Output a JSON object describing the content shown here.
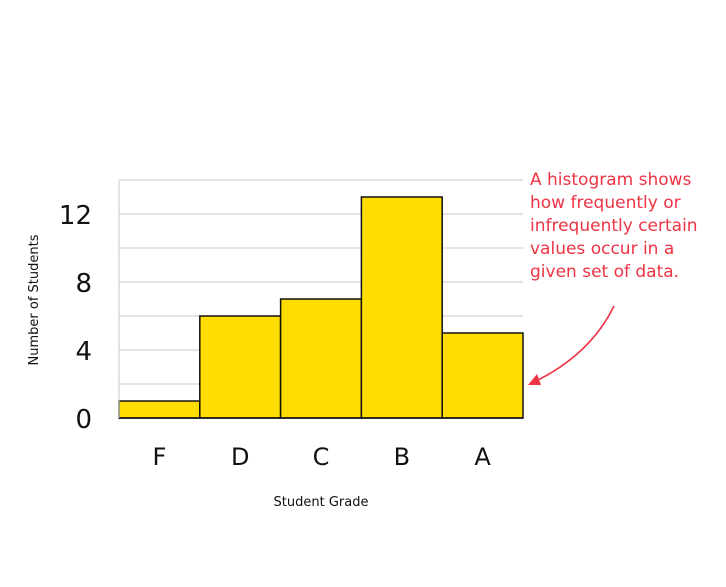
{
  "chart_data": {
    "type": "bar",
    "categories": [
      "F",
      "D",
      "C",
      "B",
      "A"
    ],
    "values": [
      1,
      6,
      7,
      13,
      5
    ],
    "xlabel": "Student Grade",
    "ylabel": "Number of Students",
    "ylim": [
      0,
      14
    ],
    "yticks": [
      0,
      4,
      8,
      12
    ],
    "grid": true,
    "colors": {
      "bar": "#FFDD00",
      "bar_stroke": "#111111",
      "grid": "#c8c8c8",
      "annotation": "#ee3344"
    }
  },
  "annotation": {
    "lines": [
      "A histogram shows",
      "how frequently or",
      "infrequently certain",
      "values occur in a",
      "given set of data."
    ]
  }
}
